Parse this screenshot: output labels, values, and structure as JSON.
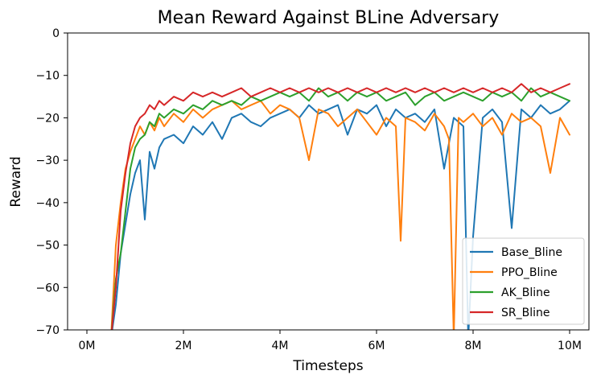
{
  "chart_data": {
    "type": "line",
    "title": "Mean Reward Against BLine Adversary",
    "xlabel": "Timesteps",
    "ylabel": "Reward",
    "xlim": [
      -0.4,
      10.4
    ],
    "ylim": [
      -70,
      0
    ],
    "xticks": [
      0,
      2,
      4,
      6,
      8,
      10
    ],
    "xtick_labels": [
      "0M",
      "2M",
      "4M",
      "6M",
      "8M",
      "10M"
    ],
    "yticks": [
      0,
      -10,
      -20,
      -30,
      -40,
      -50,
      -60,
      -70
    ],
    "ytick_labels": [
      "0",
      "−10",
      "−20",
      "−30",
      "−40",
      "−50",
      "−60",
      "−70"
    ],
    "grid": false,
    "legend_position": "lower-right",
    "series": [
      {
        "name": "Base_Bline",
        "color": "#1f77b4",
        "x": [
          0.5,
          0.6,
          0.7,
          0.8,
          0.9,
          1.0,
          1.1,
          1.2,
          1.3,
          1.4,
          1.5,
          1.6,
          1.8,
          2.0,
          2.2,
          2.4,
          2.6,
          2.8,
          3.0,
          3.2,
          3.4,
          3.6,
          3.8,
          4.0,
          4.2,
          4.4,
          4.6,
          4.8,
          5.0,
          5.2,
          5.4,
          5.6,
          5.8,
          6.0,
          6.2,
          6.4,
          6.6,
          6.8,
          7.0,
          7.2,
          7.4,
          7.6,
          7.8,
          7.9,
          8.0,
          8.2,
          8.4,
          8.6,
          8.8,
          9.0,
          9.2,
          9.4,
          9.6,
          9.8,
          10.0
        ],
        "y": [
          -72,
          -64,
          -52,
          -45,
          -38,
          -33,
          -30,
          -44,
          -28,
          -32,
          -27,
          -25,
          -24,
          -26,
          -22,
          -24,
          -21,
          -25,
          -20,
          -19,
          -21,
          -22,
          -20,
          -19,
          -18,
          -20,
          -17,
          -19,
          -18,
          -17,
          -24,
          -18,
          -19,
          -17,
          -22,
          -18,
          -20,
          -19,
          -21,
          -18,
          -32,
          -20,
          -22,
          -72,
          -48,
          -20,
          -18,
          -21,
          -46,
          -18,
          -20,
          -17,
          -19,
          -18,
          -16
        ]
      },
      {
        "name": "PPO_Bline",
        "color": "#ff7f0e",
        "x": [
          0.5,
          0.6,
          0.7,
          0.8,
          0.9,
          1.0,
          1.1,
          1.2,
          1.3,
          1.4,
          1.5,
          1.6,
          1.8,
          2.0,
          2.2,
          2.4,
          2.6,
          2.8,
          3.0,
          3.2,
          3.4,
          3.6,
          3.8,
          4.0,
          4.2,
          4.4,
          4.6,
          4.8,
          5.0,
          5.2,
          5.4,
          5.6,
          5.8,
          6.0,
          6.2,
          6.4,
          6.5,
          6.6,
          6.8,
          7.0,
          7.2,
          7.4,
          7.5,
          7.6,
          7.7,
          7.8,
          8.0,
          8.2,
          8.4,
          8.6,
          8.8,
          9.0,
          9.2,
          9.4,
          9.6,
          9.8,
          10.0
        ],
        "y": [
          -72,
          -50,
          -40,
          -32,
          -28,
          -25,
          -22,
          -24,
          -21,
          -23,
          -20,
          -22,
          -19,
          -21,
          -18,
          -20,
          -18,
          -17,
          -16,
          -18,
          -17,
          -16,
          -19,
          -17,
          -18,
          -20,
          -30,
          -18,
          -19,
          -22,
          -20,
          -18,
          -21,
          -24,
          -20,
          -22,
          -49,
          -20,
          -21,
          -23,
          -19,
          -22,
          -25,
          -72,
          -20,
          -21,
          -19,
          -22,
          -20,
          -24,
          -19,
          -21,
          -20,
          -22,
          -33,
          -20,
          -24
        ]
      },
      {
        "name": "AK_Bline",
        "color": "#2ca02c",
        "x": [
          0.5,
          0.6,
          0.7,
          0.8,
          0.9,
          1.0,
          1.1,
          1.2,
          1.3,
          1.4,
          1.5,
          1.6,
          1.8,
          2.0,
          2.2,
          2.4,
          2.6,
          2.8,
          3.0,
          3.2,
          3.4,
          3.6,
          3.8,
          4.0,
          4.2,
          4.4,
          4.6,
          4.8,
          5.0,
          5.2,
          5.4,
          5.6,
          5.8,
          6.0,
          6.2,
          6.4,
          6.6,
          6.8,
          7.0,
          7.2,
          7.4,
          7.6,
          7.8,
          8.0,
          8.2,
          8.4,
          8.6,
          8.8,
          9.0,
          9.2,
          9.4,
          9.6,
          9.8,
          10.0
        ],
        "y": [
          -72,
          -58,
          -52,
          -42,
          -32,
          -27,
          -25,
          -24,
          -21,
          -22,
          -19,
          -20,
          -18,
          -19,
          -17,
          -18,
          -16,
          -17,
          -16,
          -17,
          -15,
          -16,
          -15,
          -14,
          -15,
          -14,
          -16,
          -13,
          -15,
          -14,
          -16,
          -14,
          -15,
          -14,
          -16,
          -15,
          -14,
          -17,
          -15,
          -14,
          -16,
          -15,
          -14,
          -15,
          -16,
          -14,
          -15,
          -14,
          -16,
          -13,
          -15,
          -14,
          -15,
          -16
        ]
      },
      {
        "name": "SR_Bline",
        "color": "#d62728",
        "x": [
          0.5,
          0.6,
          0.7,
          0.8,
          0.9,
          1.0,
          1.1,
          1.2,
          1.3,
          1.4,
          1.5,
          1.6,
          1.8,
          2.0,
          2.2,
          2.4,
          2.6,
          2.8,
          3.0,
          3.2,
          3.4,
          3.6,
          3.8,
          4.0,
          4.2,
          4.4,
          4.6,
          4.8,
          5.0,
          5.2,
          5.4,
          5.6,
          5.8,
          6.0,
          6.2,
          6.4,
          6.6,
          6.8,
          7.0,
          7.2,
          7.4,
          7.6,
          7.8,
          8.0,
          8.2,
          8.4,
          8.6,
          8.8,
          9.0,
          9.2,
          9.4,
          9.6,
          9.8,
          10.0
        ],
        "y": [
          -72,
          -60,
          -42,
          -33,
          -26,
          -22,
          -20,
          -19,
          -17,
          -18,
          -16,
          -17,
          -15,
          -16,
          -14,
          -15,
          -14,
          -15,
          -14,
          -13,
          -15,
          -14,
          -13,
          -14,
          -13,
          -14,
          -13,
          -14,
          -13,
          -14,
          -13,
          -14,
          -13,
          -14,
          -13,
          -14,
          -13,
          -14,
          -13,
          -14,
          -13,
          -14,
          -13,
          -14,
          -13,
          -14,
          -13,
          -14,
          -12,
          -14,
          -13,
          -14,
          -13,
          -12
        ]
      }
    ]
  }
}
